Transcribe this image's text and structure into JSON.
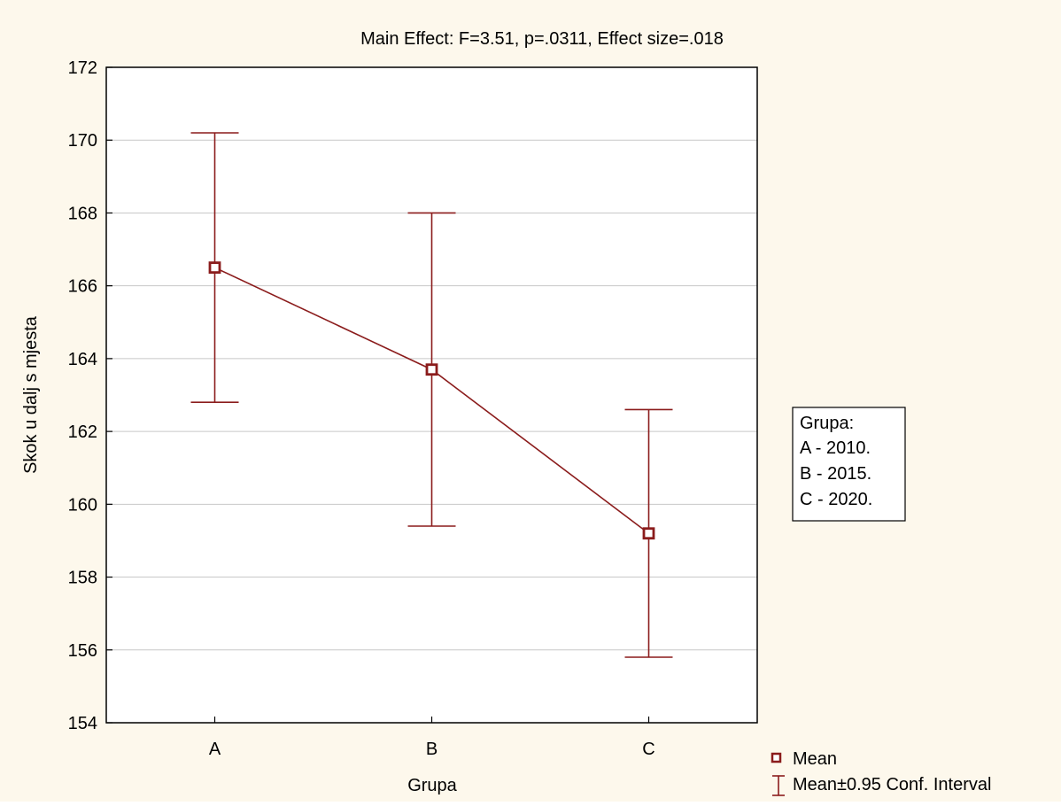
{
  "chart_data": {
    "type": "line",
    "title": "Main Effect: F=3.51, p=.0311, Effect size=.018",
    "xlabel": "Grupa",
    "ylabel": "Skok u dalj s mjesta",
    "categories": [
      "A",
      "B",
      "C"
    ],
    "ylim": [
      154,
      172
    ],
    "yticks": [
      154,
      156,
      158,
      160,
      162,
      164,
      166,
      168,
      170,
      172
    ],
    "grid": true,
    "series": [
      {
        "values": [
          166.5,
          163.7,
          159.2
        ],
        "ci_lower": [
          162.8,
          159.4,
          155.8
        ],
        "ci_upper": [
          170.2,
          168.0,
          162.6
        ]
      }
    ],
    "info_box": {
      "lines": [
        "Grupa:",
        "A - 2010.",
        "B - 2015.",
        "C - 2020."
      ]
    },
    "legend": {
      "placement": "bottom-right",
      "entries": [
        "Mean",
        "Mean±0.95 Conf. Interval"
      ]
    },
    "colors": {
      "background": "#fdf8ec",
      "plot_background": "#ffffff",
      "series": "#8b1c1c",
      "grid": "#c8c8c8"
    }
  }
}
